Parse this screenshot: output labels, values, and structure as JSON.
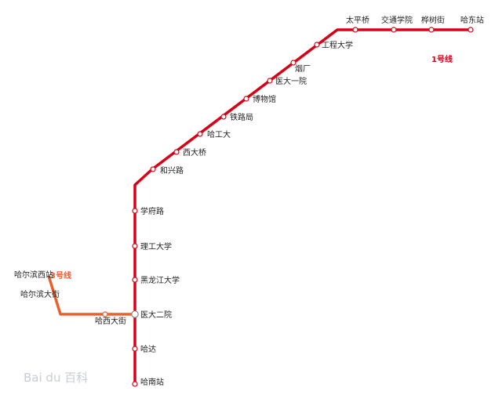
{
  "map": {
    "lines": [
      {
        "id": "line1",
        "name": "1号线",
        "color": "#d90016",
        "stations": [
          "太平桥",
          "交通学院",
          "桦树街",
          "哈东站",
          "工程大学",
          "烟厂",
          "医大一院",
          "博物馆",
          "铁路局",
          "哈工大",
          "西大桥",
          "和兴路",
          "学府路",
          "理工大学",
          "黑龙江大学",
          "医大二院",
          "哈达",
          "哈南站"
        ]
      },
      {
        "id": "line3",
        "name": "3号线",
        "color": "#e8602c",
        "stations": [
          "哈尔滨西站",
          "哈尔滨大街",
          "哈西大街",
          "医大二院"
        ]
      }
    ],
    "interchange": "医大二院",
    "watermark": "Bai du 百科"
  }
}
